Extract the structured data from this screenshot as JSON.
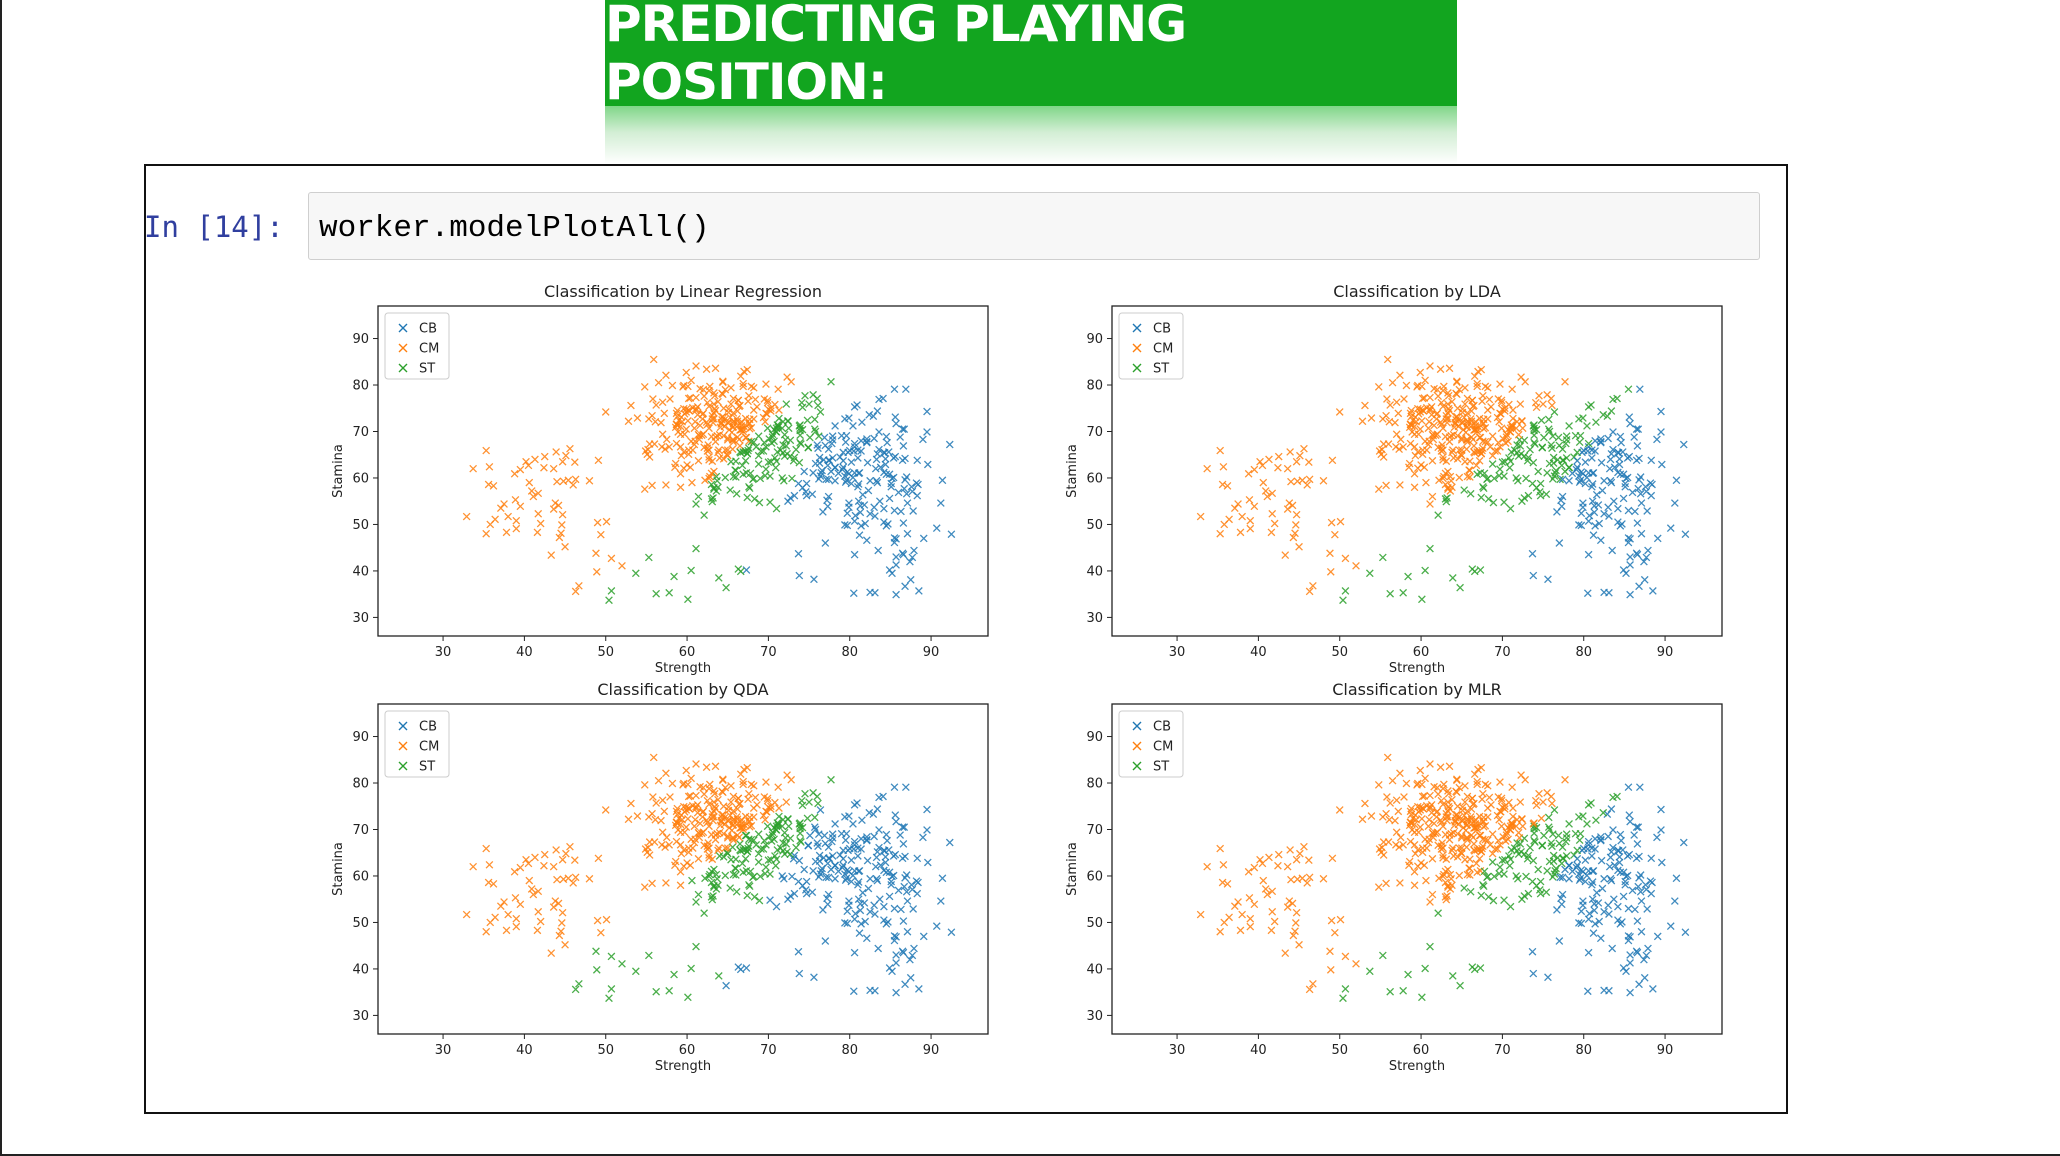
{
  "banner": {
    "title": "PREDICTING PLAYING POSITION:"
  },
  "notebook": {
    "prompt": "In [14]:",
    "code": "worker.modelPlotAll()"
  },
  "colors": {
    "CB": "#1f77b4",
    "CM": "#ff7f0e",
    "ST": "#2ca02c",
    "banner": "#12a51f"
  },
  "chart_data": [
    {
      "type": "scatter",
      "title": "Classification by Linear Regression",
      "xlabel": "Strength",
      "ylabel": "Stamina",
      "xlim": [
        22,
        97
      ],
      "ylim": [
        26,
        97
      ],
      "xticks": [
        30,
        40,
        50,
        60,
        70,
        80,
        90
      ],
      "yticks": [
        30,
        40,
        50,
        60,
        70,
        80,
        90
      ],
      "legend": [
        "CB",
        "CM",
        "ST"
      ],
      "legend_position": "top-left",
      "marker": "x",
      "boundaries": {
        "CM_ST": [
          -54,
          1.8
        ],
        "ST_CB": [
          -175,
          3.2
        ]
      }
    },
    {
      "type": "scatter",
      "title": "Classification by LDA",
      "xlabel": "Strength",
      "ylabel": "Stamina",
      "xlim": [
        22,
        97
      ],
      "ylim": [
        26,
        97
      ],
      "xticks": [
        30,
        40,
        50,
        60,
        70,
        80,
        90
      ],
      "yticks": [
        30,
        40,
        50,
        60,
        70,
        80,
        90
      ],
      "legend": [
        "CB",
        "CM",
        "ST"
      ],
      "legend_position": "top-left",
      "marker": "x",
      "boundaries": {
        "CM_ST": [
          -39,
          1.5
        ],
        "ST_CB": [
          -110,
          2.2
        ]
      }
    },
    {
      "type": "scatter",
      "title": "Classification by QDA",
      "xlabel": "Strength",
      "ylabel": "Stamina",
      "xlim": [
        22,
        97
      ],
      "ylim": [
        26,
        97
      ],
      "xticks": [
        30,
        40,
        50,
        60,
        70,
        80,
        90
      ],
      "yticks": [
        30,
        40,
        50,
        60,
        70,
        80,
        90
      ],
      "legend": [
        "CB",
        "CM",
        "ST"
      ],
      "legend_position": "top-left",
      "marker": "x",
      "boundaries": {
        "CM_ST": [
          -22,
          1.35
        ],
        "ST_CB": [
          -155,
          3.0
        ]
      }
    },
    {
      "type": "scatter",
      "title": "Classification by MLR",
      "xlabel": "Strength",
      "ylabel": "Stamina",
      "xlim": [
        22,
        97
      ],
      "ylim": [
        26,
        97
      ],
      "xticks": [
        30,
        40,
        50,
        60,
        70,
        80,
        90
      ],
      "yticks": [
        30,
        40,
        50,
        60,
        70,
        80,
        90
      ],
      "legend": [
        "CB",
        "CM",
        "ST"
      ],
      "legend_position": "top-left",
      "marker": "x",
      "boundaries": {
        "CM_ST": [
          -40,
          1.5
        ],
        "ST_CB": [
          -125,
          2.4
        ]
      }
    }
  ]
}
